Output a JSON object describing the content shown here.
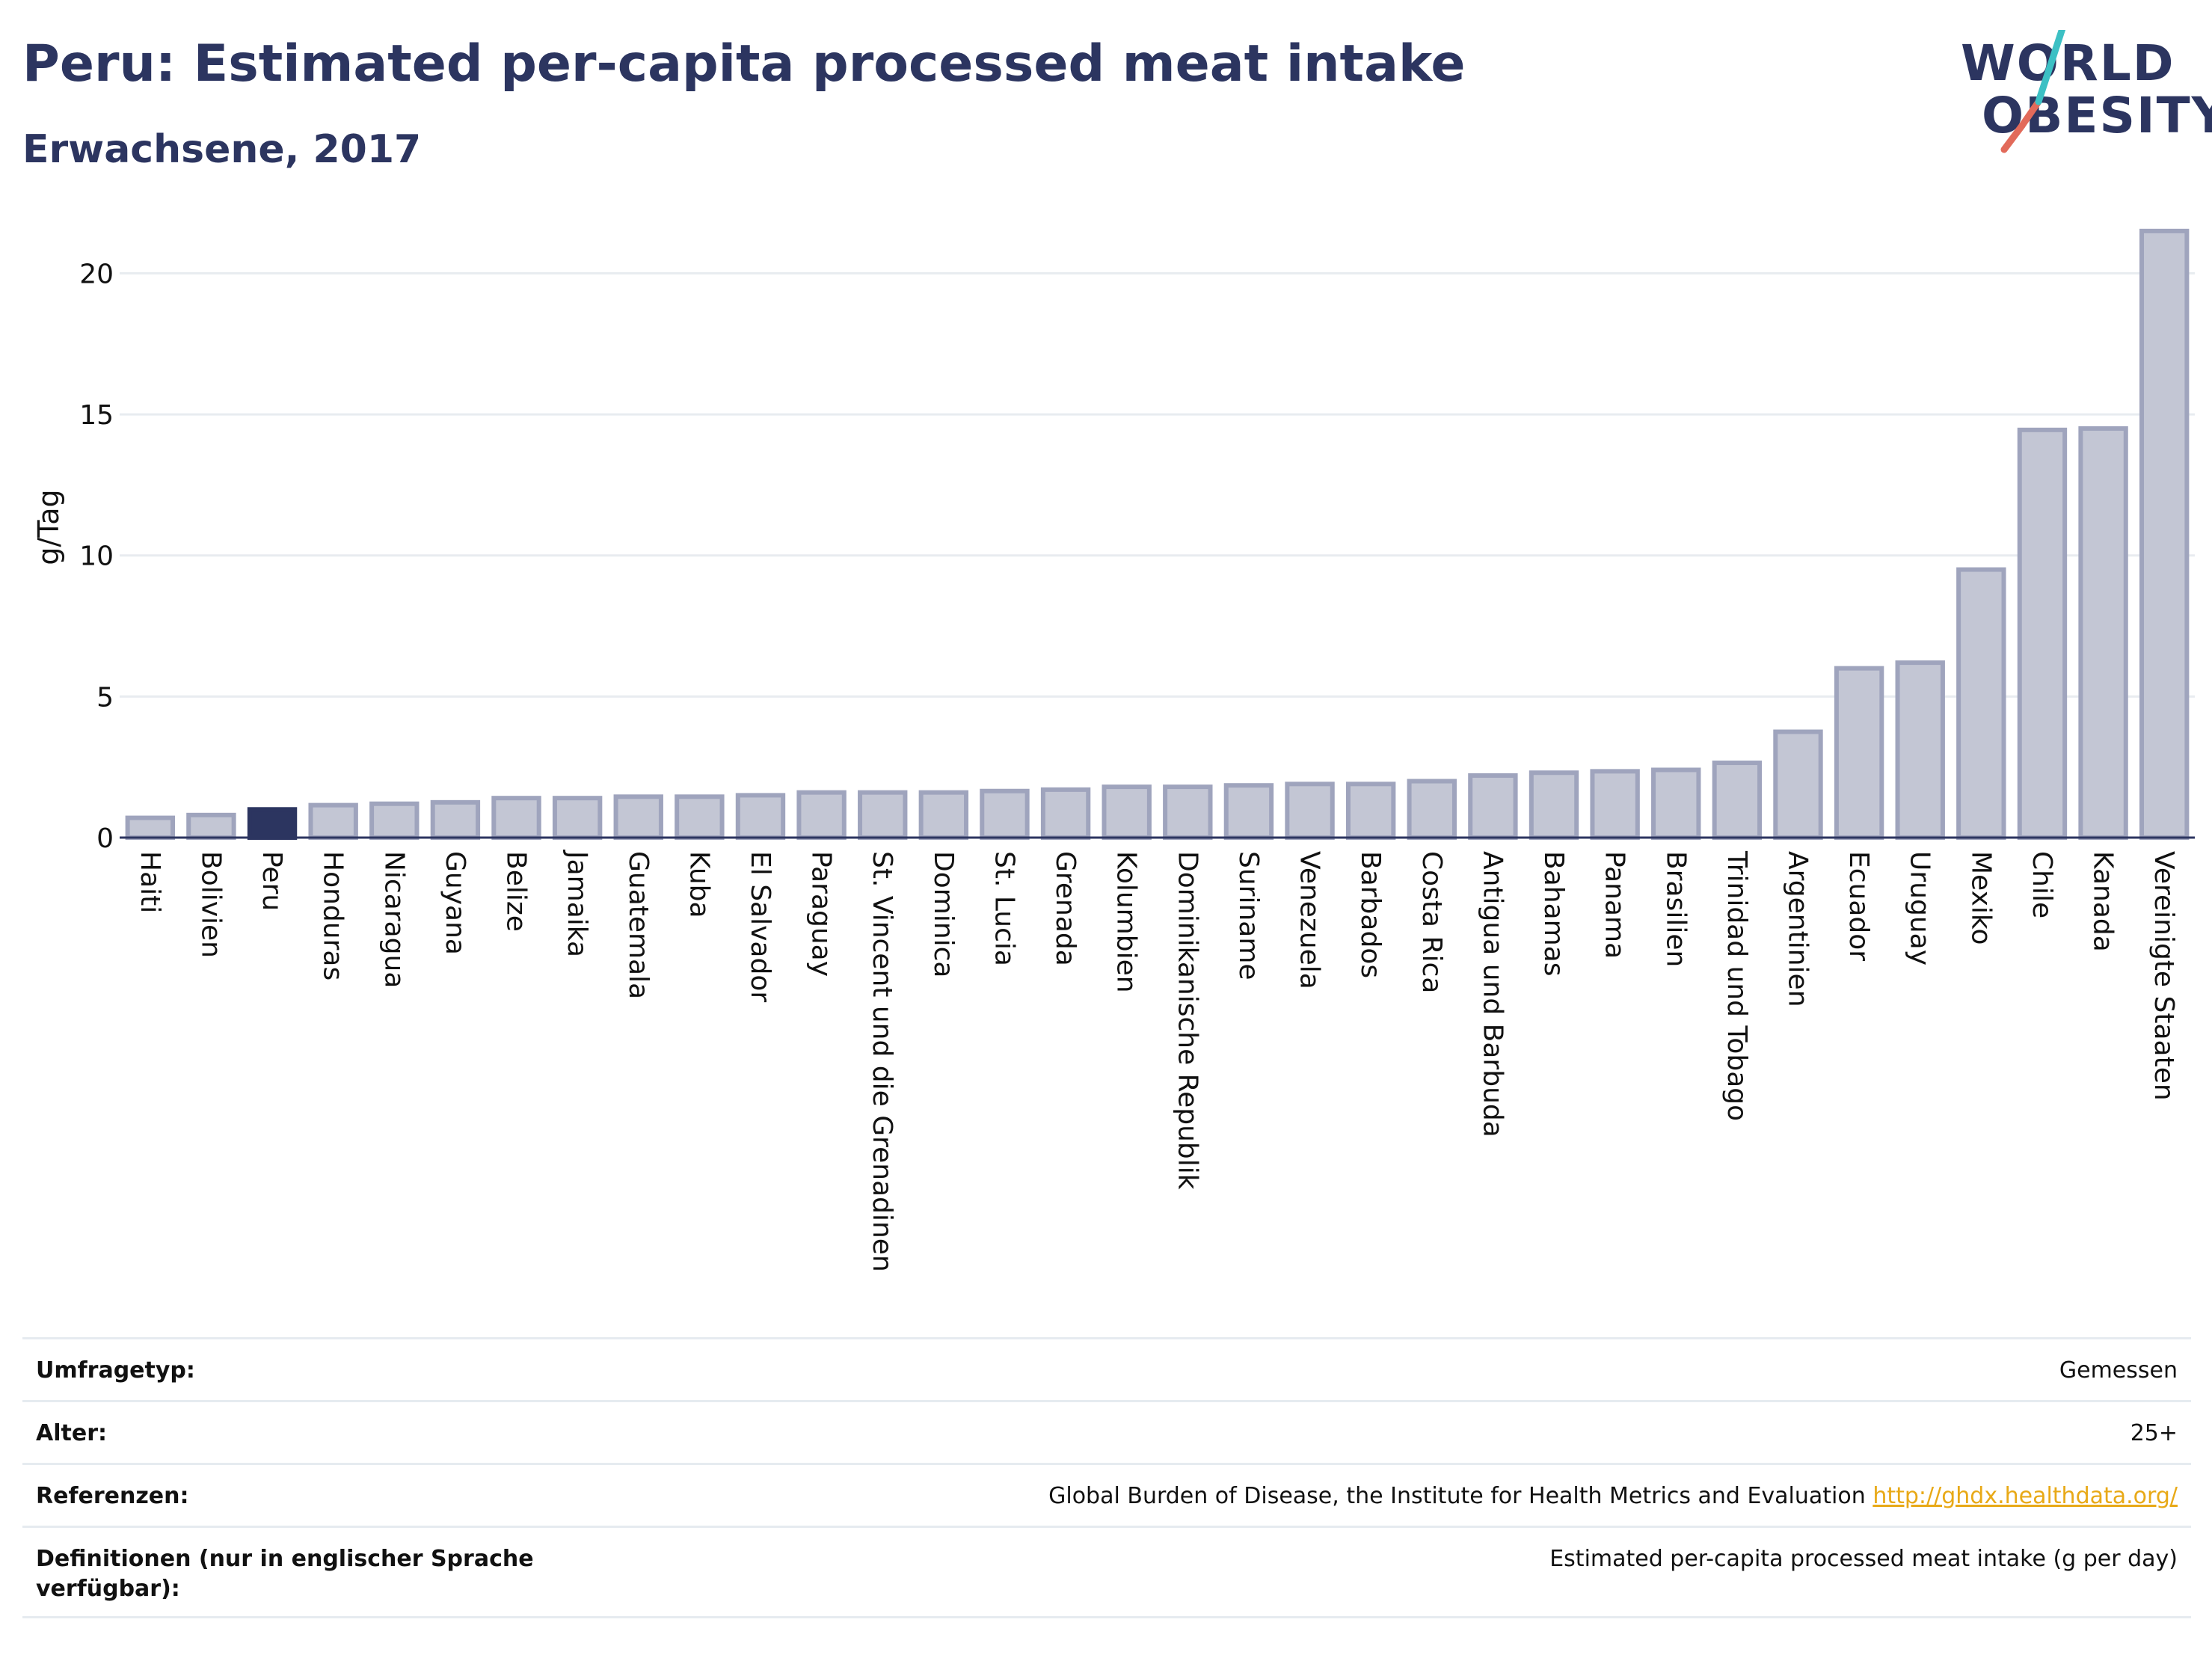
{
  "header": {
    "title": "Peru: Estimated per-capita processed meat intake",
    "subtitle": "Erwachsene, 2017"
  },
  "logo": {
    "line1": "WORLD",
    "line2": "OBESITY",
    "colors": {
      "navy": "#2c3560",
      "teal": "#3cc0c4",
      "coral": "#e26a5a"
    }
  },
  "chart_data": {
    "type": "bar",
    "ylabel": "g/Tag",
    "ylim": [
      0,
      22
    ],
    "yticks": [
      0,
      5,
      10,
      15,
      20
    ],
    "grid": true,
    "highlight": "Peru",
    "colors": {
      "bar": "#c3c6d4",
      "bar_border": "#9fa4bd",
      "highlight": "#2c3560",
      "grid": "#e8ecf0",
      "axis": "#2c3560"
    },
    "categories": [
      "Haiti",
      "Bolivien",
      "Peru",
      "Honduras",
      "Nicaragua",
      "Guyana",
      "Belize",
      "Jamaika",
      "Guatemala",
      "Kuba",
      "El Salvador",
      "Paraguay",
      "St. Vincent und die Grenadinen",
      "Dominica",
      "St. Lucia",
      "Grenada",
      "Kolumbien",
      "Dominikanische Republik",
      "Suriname",
      "Venezuela",
      "Barbados",
      "Costa Rica",
      "Antigua und Barbuda",
      "Bahamas",
      "Panama",
      "Brasilien",
      "Trinidad und Tobago",
      "Argentinien",
      "Ecuador",
      "Uruguay",
      "Mexiko",
      "Chile",
      "Kanada",
      "Vereinigte Staaten"
    ],
    "values": [
      0.7,
      0.8,
      1.0,
      1.15,
      1.2,
      1.25,
      1.4,
      1.4,
      1.45,
      1.45,
      1.5,
      1.6,
      1.6,
      1.6,
      1.65,
      1.7,
      1.8,
      1.8,
      1.85,
      1.9,
      1.9,
      2.0,
      2.2,
      2.3,
      2.35,
      2.4,
      2.65,
      3.75,
      6.0,
      6.2,
      9.5,
      14.45,
      14.5,
      21.5
    ]
  },
  "info_table": [
    {
      "label": "Umfragetyp:",
      "value": "Gemessen"
    },
    {
      "label": "Alter:",
      "value": "25+"
    },
    {
      "label": "Referenzen:",
      "value": "Global Burden of Disease, the Institute for Health Metrics and Evaluation",
      "link": "http://ghdx.healthdata.org/"
    },
    {
      "label": "Definitionen (nur in englischer Sprache verfügbar):",
      "value": "Estimated per-capita processed meat intake (g per day)"
    }
  ]
}
